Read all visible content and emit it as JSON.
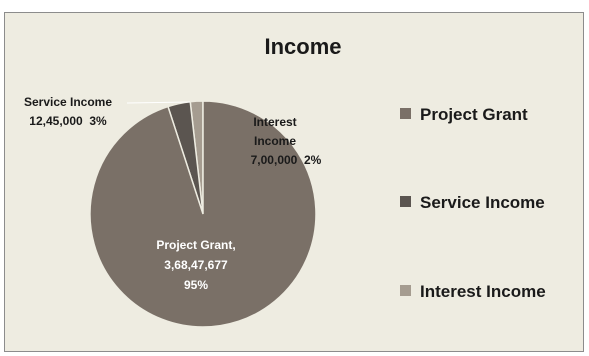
{
  "chart_data": {
    "type": "pie",
    "title": "Income",
    "slices": [
      {
        "name": "Project Grant",
        "value": 36847677,
        "value_label": "3,68,47,677",
        "percent": 95,
        "percent_label": "95%",
        "color": "#7a7067"
      },
      {
        "name": "Service Income",
        "value": 1245000,
        "value_label": "12,45,000",
        "percent": 3,
        "percent_label": "3%",
        "color": "#5b5550"
      },
      {
        "name": "Interest Income",
        "value": 700000,
        "value_label": "7,00,000",
        "percent": 2,
        "percent_label": "2%",
        "color": "#a59c90"
      }
    ],
    "data_labels": {
      "project": {
        "line1": "Project Grant,",
        "line2": "3,68,47,677",
        "line3": "95%"
      },
      "service": {
        "line1": "Service Income",
        "line2": "12,45,000  3%"
      },
      "interest": {
        "line1": "Interest",
        "line2": "Income",
        "line3": "7,00,000  2%"
      }
    },
    "legend": {
      "position": "right",
      "items": [
        "Project Grant",
        "Service Income",
        "Interest Income"
      ]
    }
  },
  "colors": {
    "background": "#eeece1",
    "border": "#8c8c8c",
    "text": "#1a1a1a",
    "slice_edge": "#eeece1"
  }
}
